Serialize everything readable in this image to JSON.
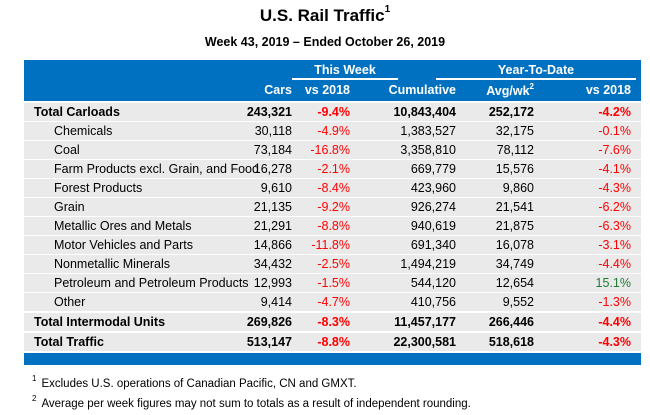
{
  "title": {
    "text": "U.S. Rail Traffic",
    "footnote_ref": "1"
  },
  "subtitle": "Week 43, 2019 – Ended October 26, 2019",
  "header": {
    "groups": {
      "this_week": "This Week",
      "year_to_date": "Year-To-Date"
    },
    "columns": {
      "cars": "Cars",
      "week_vs": "vs 2018",
      "cumulative": "Cumulative",
      "avg_wk": "Avg/wk",
      "avg_wk_ref": "2",
      "ytd_vs": "vs 2018"
    }
  },
  "colors": {
    "header_bg": "#0070C0",
    "row_bg": "#EAEAEA",
    "negative": "#FF0000",
    "positive": "#1E7B34"
  },
  "rows": [
    {
      "label": "Total Carloads",
      "type": "total",
      "cars": "243,321",
      "week_vs": "-9.4%",
      "cumulative": "10,843,404",
      "avg_wk": "252,172",
      "ytd_vs": "-4.2%"
    },
    {
      "label": "Chemicals",
      "type": "sub",
      "cars": "30,118",
      "week_vs": "-4.9%",
      "cumulative": "1,383,527",
      "avg_wk": "32,175",
      "ytd_vs": "-0.1%"
    },
    {
      "label": "Coal",
      "type": "sub",
      "cars": "73,184",
      "week_vs": "-16.8%",
      "cumulative": "3,358,810",
      "avg_wk": "78,112",
      "ytd_vs": "-7.6%"
    },
    {
      "label": "Farm Products excl. Grain, and Food",
      "type": "sub",
      "cars": "16,278",
      "week_vs": "-2.1%",
      "cumulative": "669,779",
      "avg_wk": "15,576",
      "ytd_vs": "-4.1%"
    },
    {
      "label": "Forest Products",
      "type": "sub",
      "cars": "9,610",
      "week_vs": "-8.4%",
      "cumulative": "423,960",
      "avg_wk": "9,860",
      "ytd_vs": "-4.3%"
    },
    {
      "label": "Grain",
      "type": "sub",
      "cars": "21,135",
      "week_vs": "-9.2%",
      "cumulative": "926,274",
      "avg_wk": "21,541",
      "ytd_vs": "-6.2%"
    },
    {
      "label": "Metallic Ores and Metals",
      "type": "sub",
      "cars": "21,291",
      "week_vs": "-8.8%",
      "cumulative": "940,619",
      "avg_wk": "21,875",
      "ytd_vs": "-6.3%"
    },
    {
      "label": "Motor Vehicles and Parts",
      "type": "sub",
      "cars": "14,866",
      "week_vs": "-11.8%",
      "cumulative": "691,340",
      "avg_wk": "16,078",
      "ytd_vs": "-3.1%"
    },
    {
      "label": "Nonmetallic Minerals",
      "type": "sub",
      "cars": "34,432",
      "week_vs": "-2.5%",
      "cumulative": "1,494,219",
      "avg_wk": "34,749",
      "ytd_vs": "-4.4%"
    },
    {
      "label": "Petroleum and Petroleum Products",
      "type": "sub",
      "cars": "12,993",
      "week_vs": "-1.5%",
      "cumulative": "544,120",
      "avg_wk": "12,654",
      "ytd_vs": "15.1%"
    },
    {
      "label": "Other",
      "type": "sub",
      "cars": "9,414",
      "week_vs": "-4.7%",
      "cumulative": "410,756",
      "avg_wk": "9,552",
      "ytd_vs": "-1.3%"
    },
    {
      "label": "Total Intermodal Units",
      "type": "total",
      "cars": "269,826",
      "week_vs": "-8.3%",
      "cumulative": "11,457,177",
      "avg_wk": "266,446",
      "ytd_vs": "-4.4%"
    },
    {
      "label": "Total Traffic",
      "type": "total",
      "cars": "513,147",
      "week_vs": "-8.8%",
      "cumulative": "22,300,581",
      "avg_wk": "518,618",
      "ytd_vs": "-4.3%"
    }
  ],
  "footnotes": [
    {
      "ref": "1",
      "text": "Excludes U.S. operations of Canadian Pacific, CN and GMXT."
    },
    {
      "ref": "2",
      "text": "Average per week figures may not sum to totals as a result of independent rounding."
    }
  ]
}
